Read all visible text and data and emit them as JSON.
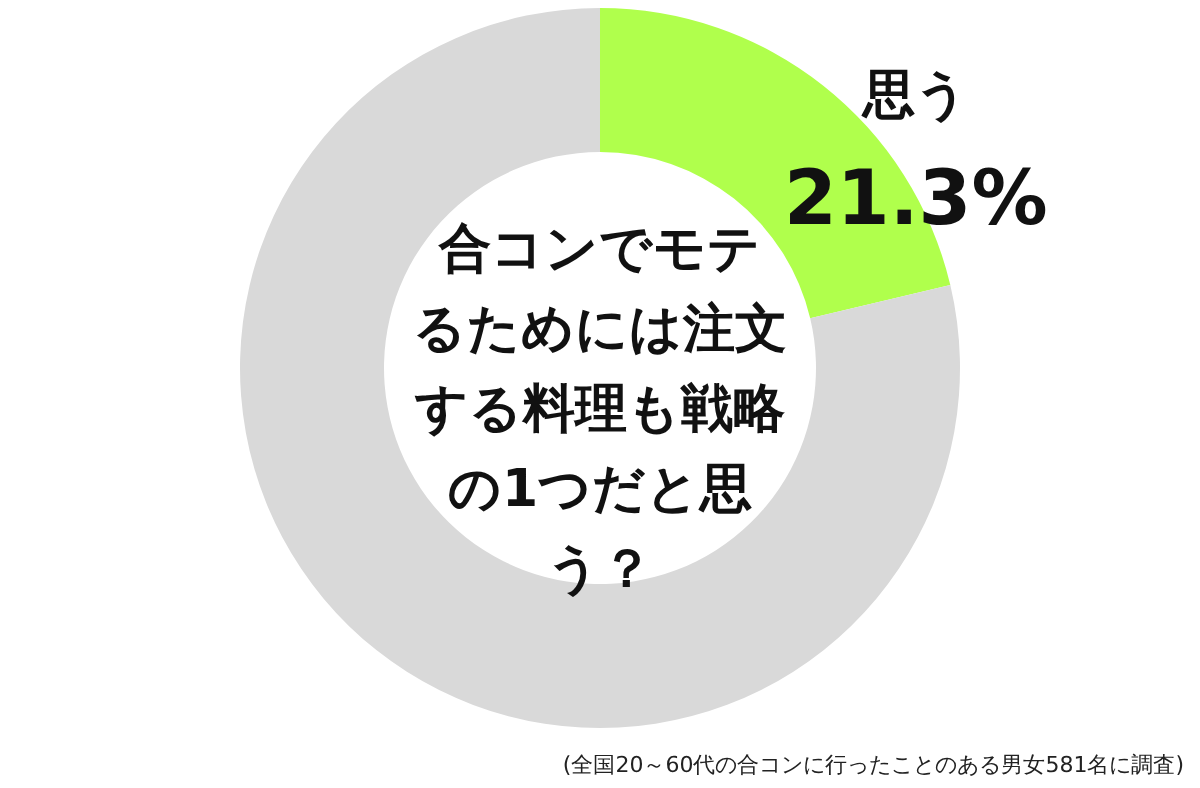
{
  "chart_data": {
    "type": "donut",
    "title": "合コンでモテるためには注文する料理も戦略の1つだと思う？",
    "categories": [
      "思う",
      null
    ],
    "values": [
      21.3,
      78.7
    ],
    "colors": [
      "#b0ff4c",
      "#d9d9d9"
    ],
    "value_labels": [
      "21.3%",
      null
    ],
    "annotations": [
      "(全国20～60代の合コンに行ったことのある男女581名に調査)"
    ]
  }
}
